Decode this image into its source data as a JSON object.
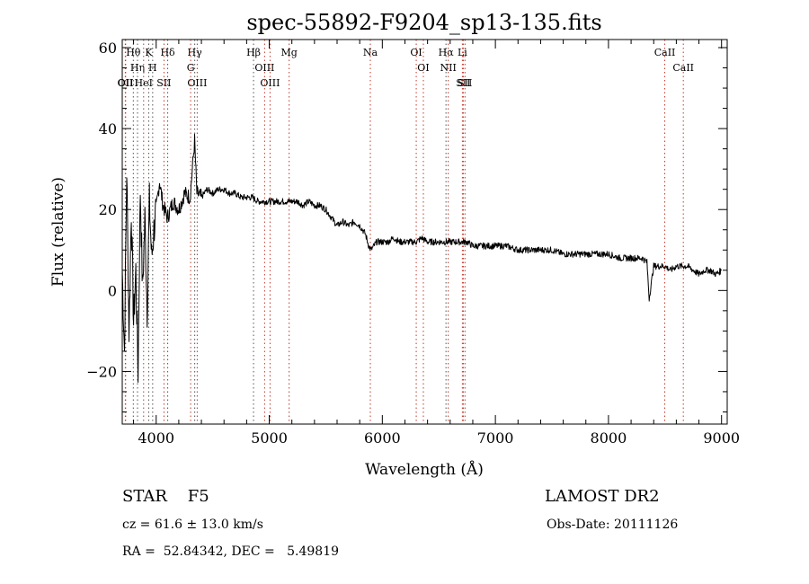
{
  "chart_data": {
    "type": "line",
    "title": "spec-55892-F9204_sp13-135.fits",
    "xlabel": "Wavelength (Å)",
    "ylabel": "Flux (relative)",
    "xlim": [
      3700,
      9050
    ],
    "ylim": [
      -33,
      62
    ],
    "xticks": [
      4000,
      5000,
      6000,
      7000,
      8000,
      9000
    ],
    "yticks": [
      -20,
      0,
      20,
      40,
      60
    ],
    "grid": false,
    "series": [
      {
        "x": [
          3700,
          3720,
          3740,
          3760,
          3780,
          3800,
          3820,
          3840,
          3860,
          3880,
          3900,
          3920,
          3940,
          3960,
          3980,
          4000,
          4030,
          4060,
          4100,
          4150,
          4200,
          4250,
          4300,
          4340,
          4360,
          4400,
          4450,
          4500,
          4550,
          4600,
          4650,
          4700,
          4750,
          4800,
          4850,
          4900,
          4950,
          5000,
          5050,
          5100,
          5150,
          5200,
          5250,
          5300,
          5350,
          5400,
          5450,
          5500,
          5550,
          5600,
          5650,
          5700,
          5750,
          5800,
          5850,
          5880,
          5900,
          5950,
          6000,
          6050,
          6100,
          6150,
          6200,
          6250,
          6300,
          6350,
          6400,
          6450,
          6500,
          6550,
          6600,
          6650,
          6700,
          6750,
          6800,
          6850,
          6900,
          6950,
          7000,
          7100,
          7200,
          7300,
          7400,
          7500,
          7600,
          7700,
          7800,
          7900,
          8000,
          8100,
          8200,
          8300,
          8340,
          8360,
          8400,
          8450,
          8500,
          8550,
          8600,
          8650,
          8700,
          8750,
          8800,
          8850,
          8900,
          8950,
          9000
        ],
        "values": [
          5,
          -15,
          30,
          -10,
          20,
          -8,
          5,
          -20,
          25,
          0,
          18,
          -5,
          22,
          8,
          15,
          20,
          27,
          21,
          18,
          22,
          20,
          24,
          23,
          37,
          24,
          23,
          25,
          24,
          25,
          25,
          24,
          24,
          23,
          23,
          23,
          22,
          22,
          22,
          22,
          22,
          22,
          22,
          22,
          21,
          22,
          21,
          21,
          20,
          18,
          16,
          17,
          16,
          17,
          16,
          14,
          11,
          10,
          12,
          12,
          12,
          13,
          12,
          12,
          12,
          12,
          13,
          12,
          12,
          12,
          12,
          12,
          12,
          12,
          12,
          11,
          11,
          11,
          11,
          11,
          11,
          10,
          10,
          10,
          10,
          9,
          9,
          9,
          9,
          9,
          8,
          8,
          8,
          7,
          -2,
          6,
          6,
          6,
          5,
          6,
          6,
          6,
          5,
          4,
          5,
          5,
          4,
          5
        ]
      }
    ],
    "line_markers": {
      "emission_dotted": [
        {
          "label": "Hθ",
          "x": 3798
        },
        {
          "label": "Hη",
          "x": 3835
        },
        {
          "label": "K",
          "x": 3934
        },
        {
          "label": "H",
          "x": 3969
        },
        {
          "label": "Hδ",
          "x": 4102
        },
        {
          "label": "Hγ",
          "x": 4341
        },
        {
          "label": "Hβ",
          "x": 4861
        },
        {
          "label": "Hα",
          "x": 6563
        }
      ],
      "red_dotted": [
        {
          "label": "OII",
          "x": 3727
        },
        {
          "label": "OII",
          "x": 3730
        },
        {
          "label": "HeI",
          "x": 3889
        },
        {
          "label": "SII",
          "x": 4069
        },
        {
          "label": "G",
          "x": 4305
        },
        {
          "label": "OIII",
          "x": 4363
        },
        {
          "label": "OIII",
          "x": 4959
        },
        {
          "label": "OIII",
          "x": 5007
        },
        {
          "label": "Mg",
          "x": 5176
        },
        {
          "label": "Na",
          "x": 5894
        },
        {
          "label": "OI",
          "x": 6300
        },
        {
          "label": "OI",
          "x": 6363
        },
        {
          "label": "NII",
          "x": 6583
        },
        {
          "label": "Li",
          "x": 6708
        },
        {
          "label": "SII",
          "x": 6716
        },
        {
          "label": "SII",
          "x": 6731
        },
        {
          "label": "CaII",
          "x": 8498
        },
        {
          "label": "CaII",
          "x": 8662
        }
      ]
    }
  },
  "info": {
    "object_class": "STAR",
    "subclass": "F5",
    "survey": "LAMOST DR2",
    "cz": "cz = 61.6 ± 13.0 km/s",
    "obs_date": "Obs-Date: 20111126",
    "coords": "RA =  52.84342, DEC =   5.49819"
  }
}
